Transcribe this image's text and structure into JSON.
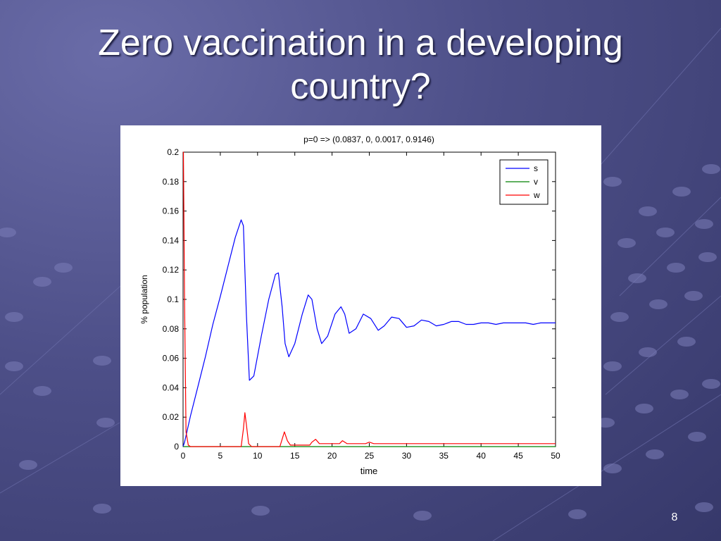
{
  "slide": {
    "title_line1": "Zero vaccination in a developing",
    "title_line2": "country?",
    "page_number": "8",
    "background_color": "#4d4f88"
  },
  "chart_data": {
    "type": "line",
    "title": "p=0 => (0.0837, 0, 0.0017, 0.9146)",
    "xlabel": "time",
    "ylabel": "% population",
    "xlim": [
      0,
      50
    ],
    "ylim": [
      0,
      0.2
    ],
    "xticks": [
      "0",
      "5",
      "10",
      "15",
      "20",
      "25",
      "30",
      "35",
      "40",
      "45",
      "50"
    ],
    "yticks": [
      "0",
      "0.02",
      "0.04",
      "0.06",
      "0.08",
      "0.1",
      "0.12",
      "0.14",
      "0.16",
      "0.18",
      "0.2"
    ],
    "grid": false,
    "legend_position": "top-right",
    "series": [
      {
        "name": "s",
        "color": "#0000ff",
        "x": [
          0,
          0.2,
          1,
          2,
          3,
          4,
          5,
          6,
          7,
          7.8,
          8.1,
          8.5,
          8.9,
          9.5,
          10.5,
          11.5,
          12.4,
          12.8,
          13.3,
          13.7,
          14.2,
          15,
          16,
          16.8,
          17.3,
          18,
          18.6,
          19.4,
          20.4,
          21.2,
          21.7,
          22.3,
          23.2,
          24.2,
          25.2,
          26.2,
          27,
          28,
          29,
          30,
          31,
          32,
          33,
          34,
          35,
          36,
          37,
          38,
          39,
          40,
          41,
          42,
          43,
          44,
          45,
          46,
          47,
          48,
          49,
          50
        ],
        "values": [
          0,
          0.003,
          0.021,
          0.041,
          0.061,
          0.083,
          0.102,
          0.122,
          0.142,
          0.154,
          0.15,
          0.09,
          0.045,
          0.048,
          0.075,
          0.1,
          0.117,
          0.118,
          0.095,
          0.07,
          0.061,
          0.07,
          0.09,
          0.103,
          0.1,
          0.08,
          0.07,
          0.075,
          0.09,
          0.095,
          0.09,
          0.077,
          0.08,
          0.09,
          0.087,
          0.079,
          0.082,
          0.088,
          0.087,
          0.081,
          0.082,
          0.086,
          0.085,
          0.082,
          0.083,
          0.085,
          0.085,
          0.083,
          0.083,
          0.084,
          0.084,
          0.083,
          0.084,
          0.084,
          0.084,
          0.084,
          0.083,
          0.084,
          0.084,
          0.084
        ]
      },
      {
        "name": "v",
        "color": "#008000",
        "x": [
          0,
          50
        ],
        "values": [
          0,
          0
        ]
      },
      {
        "name": "w",
        "color": "#ff0000",
        "x": [
          0,
          0.05,
          0.2,
          0.4,
          0.7,
          1,
          7.8,
          8.1,
          8.3,
          8.5,
          8.8,
          9.2,
          13,
          13.3,
          13.6,
          14,
          14.4,
          17,
          17.3,
          17.8,
          18.3,
          21,
          21.4,
          22,
          22.6,
          24.5,
          25,
          25.6,
          50
        ],
        "values": [
          0.2,
          0.2,
          0.1,
          0.01,
          0.001,
          0,
          0,
          0.012,
          0.023,
          0.015,
          0.002,
          0,
          0,
          0.005,
          0.01,
          0.004,
          0.001,
          0.001,
          0.003,
          0.005,
          0.002,
          0.002,
          0.004,
          0.002,
          0.002,
          0.002,
          0.003,
          0.002,
          0.002
        ]
      }
    ]
  }
}
